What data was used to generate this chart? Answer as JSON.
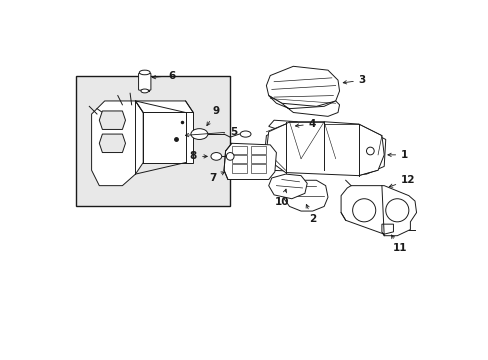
{
  "background_color": "#ffffff",
  "line_color": "#1a1a1a",
  "figure_width": 4.89,
  "figure_height": 3.6,
  "dpi": 100,
  "xlim": [
    0,
    489
  ],
  "ylim": [
    0,
    360
  ]
}
